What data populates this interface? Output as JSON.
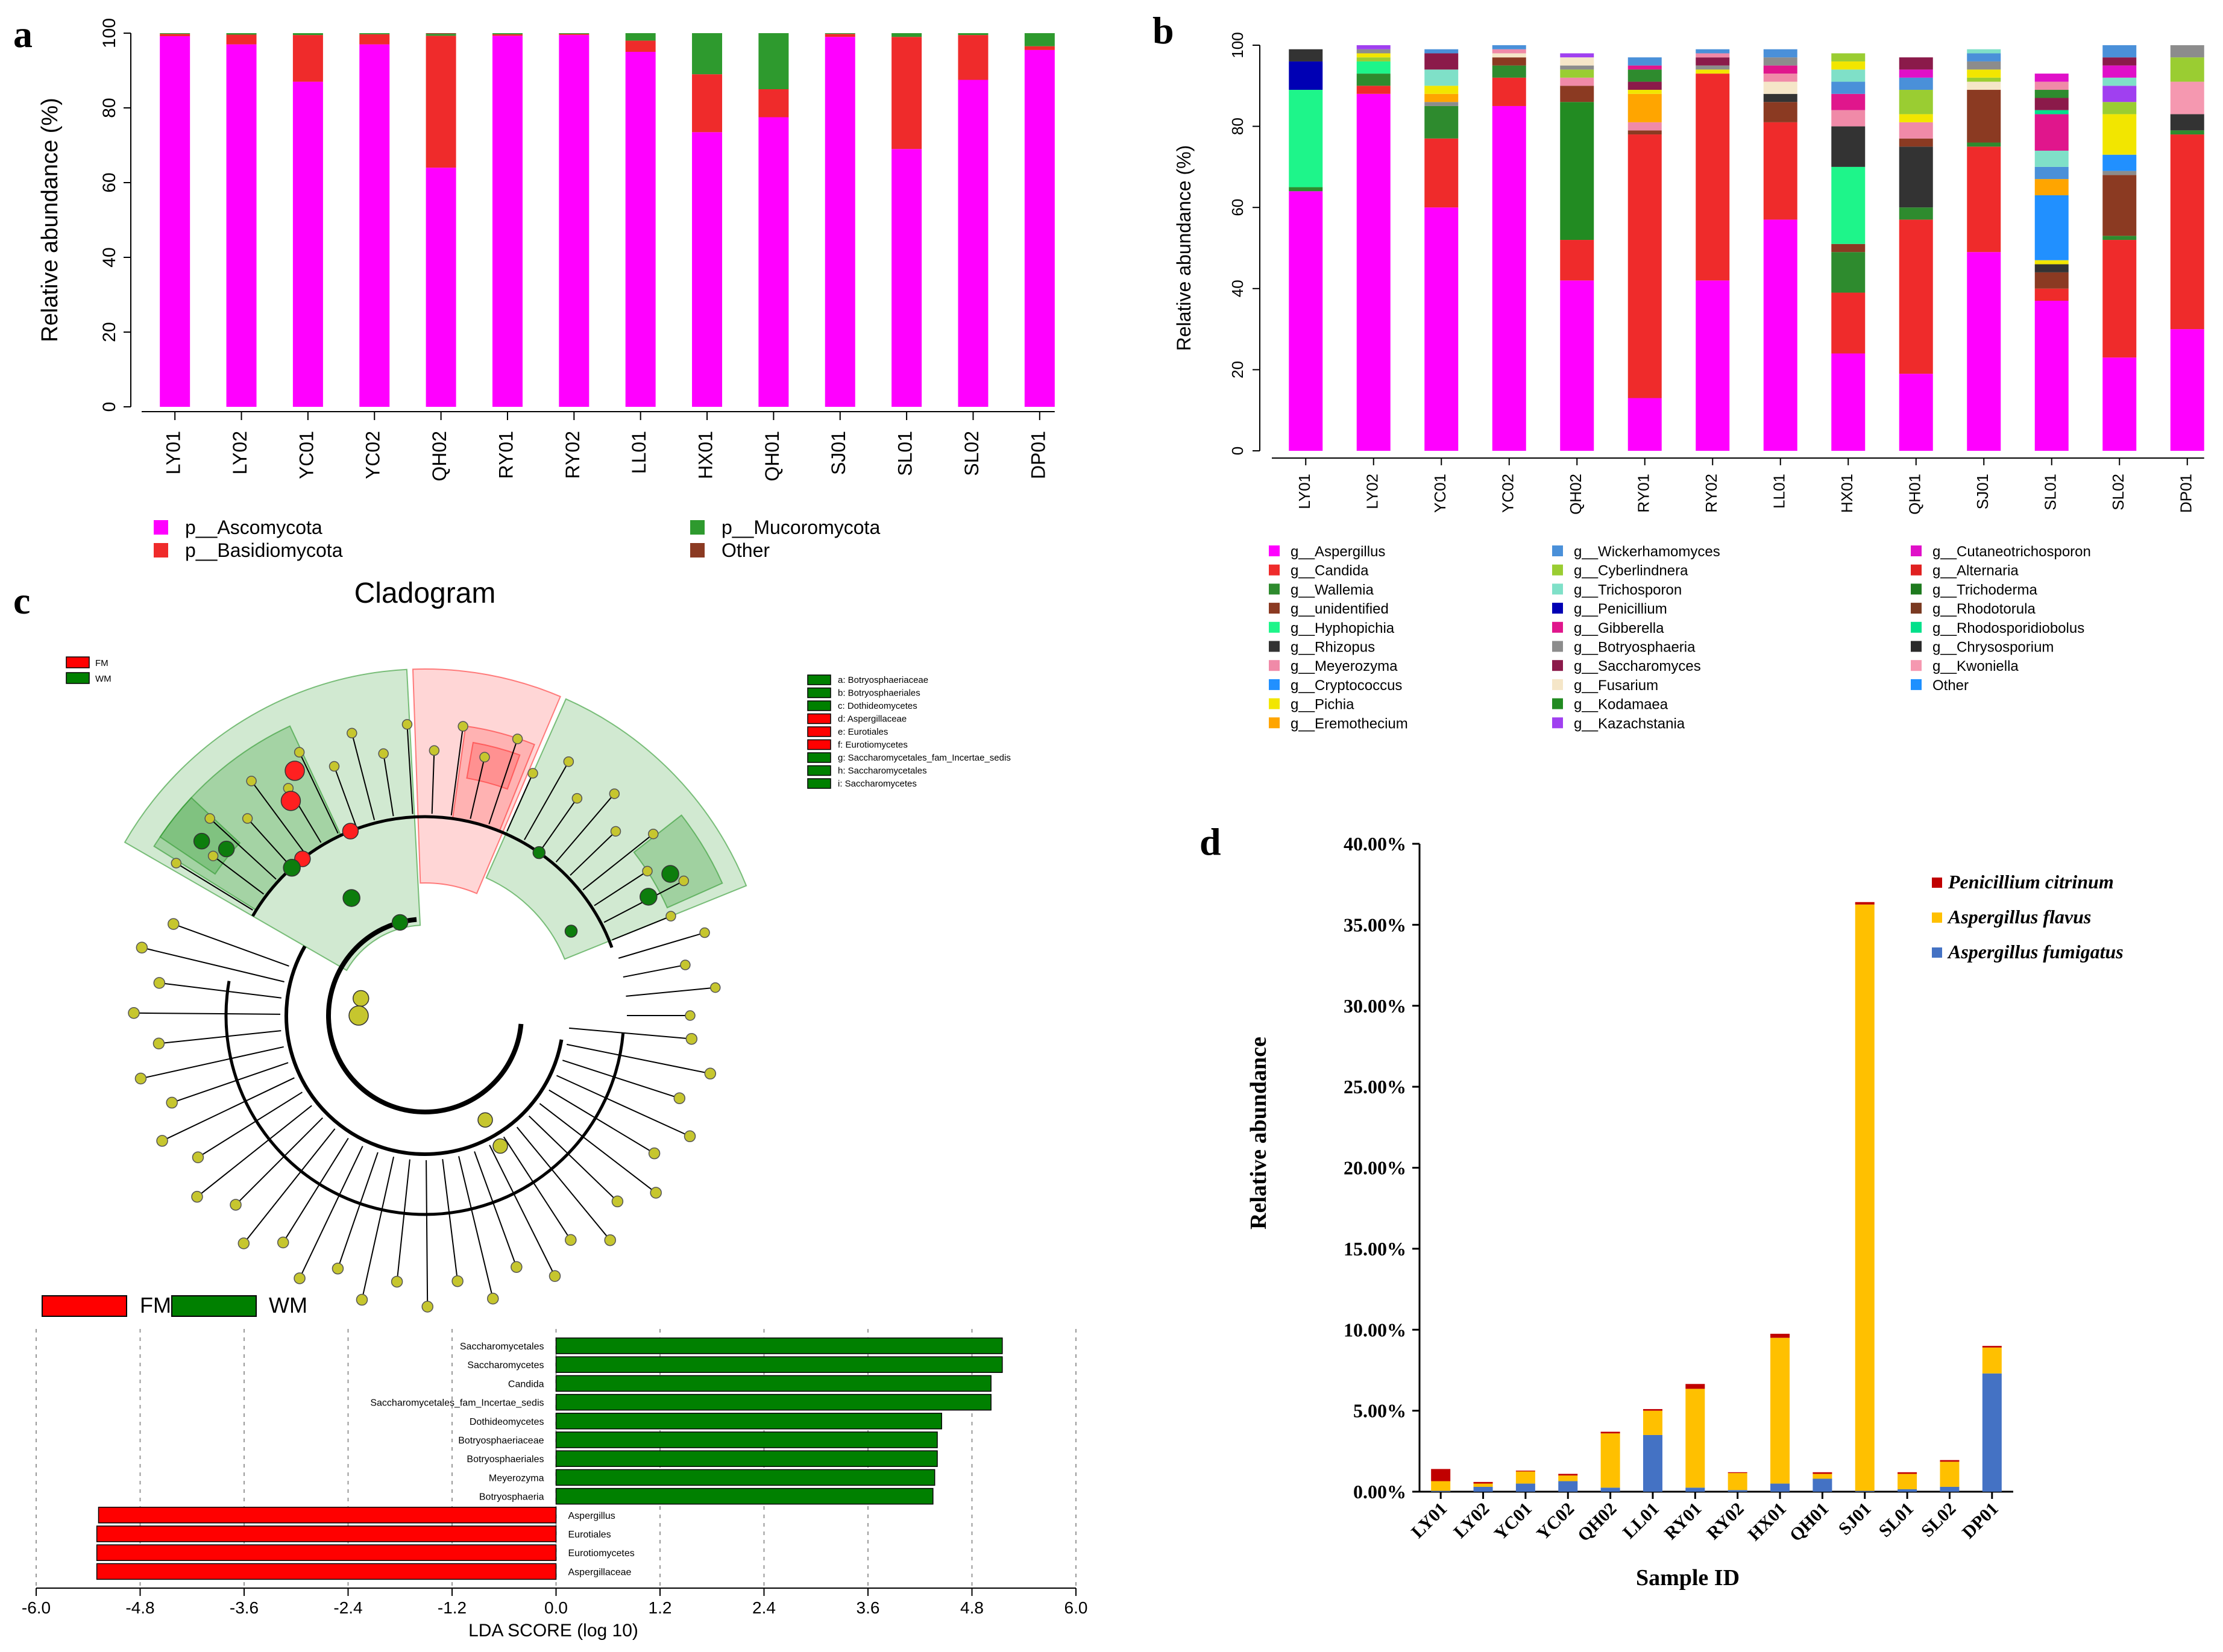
{
  "panels": {
    "a": "a",
    "b": "b",
    "c": "c",
    "d": "d"
  },
  "colors": {
    "magenta": "#ff00ff",
    "red": "#ef2b2b",
    "green": "#2e9a2e",
    "brown": "#8b3a22",
    "dgreen": "#0d7d0d",
    "yellow_node": "#c6c62e",
    "fm": "#ff0000",
    "wm": "#008000"
  },
  "chart_data": [
    {
      "id": "a",
      "type": "bar",
      "stacked": true,
      "title": "",
      "ylabel": "Relative abundance (%)",
      "ylim": [
        0,
        100
      ],
      "yticks": [
        0,
        20,
        40,
        60,
        80,
        100
      ],
      "categories": [
        "LY01",
        "LY02",
        "YC01",
        "YC02",
        "QH02",
        "RY01",
        "RY02",
        "LL01",
        "HX01",
        "QH01",
        "SJ01",
        "SL01",
        "SL02",
        "DP01"
      ],
      "series": [
        {
          "name": "p__Ascomycota",
          "color": "#ff00ff",
          "values": [
            99.2,
            97,
            87,
            97,
            64,
            99.3,
            99.5,
            95,
            73.5,
            77.5,
            99,
            69,
            87.5,
            95.5
          ]
        },
        {
          "name": "p__Basidiomycota",
          "color": "#ef2b2b",
          "values": [
            0.6,
            2.6,
            12.5,
            2.7,
            35.3,
            0.4,
            0.3,
            3,
            15.5,
            7.5,
            0.8,
            30,
            12,
            1
          ]
        },
        {
          "name": "p__Mucoromycota",
          "color": "#2e9a2e",
          "values": [
            0.2,
            0.4,
            0.5,
            0.3,
            0.5,
            0.3,
            0.2,
            2,
            11,
            15,
            0.2,
            1,
            0.5,
            3.5
          ]
        },
        {
          "name": "Other",
          "color": "#8b3a22",
          "values": [
            0,
            0,
            0,
            0,
            0.2,
            0,
            0,
            0,
            0,
            0,
            0,
            0,
            0,
            0
          ]
        }
      ]
    },
    {
      "id": "b",
      "type": "bar",
      "stacked": true,
      "title": "",
      "ylabel": "Relative abundance (%)",
      "ylim": [
        0,
        100
      ],
      "yticks": [
        0,
        20,
        40,
        60,
        80,
        100
      ],
      "categories": [
        "LY01",
        "LY02",
        "YC01",
        "YC02",
        "QH02",
        "RY01",
        "RY02",
        "LL01",
        "HX01",
        "QH01",
        "SJ01",
        "SL01",
        "SL02",
        "DP01"
      ],
      "legend": [
        {
          "name": "g__Aspergillus",
          "color": "#ff00ff"
        },
        {
          "name": "g__Candida",
          "color": "#ef2b2b"
        },
        {
          "name": "g__Wallemia",
          "color": "#2e8b2e"
        },
        {
          "name": "g__unidentified",
          "color": "#8b3a22"
        },
        {
          "name": "g__Hyphopichia",
          "color": "#1ef58a"
        },
        {
          "name": "g__Rhizopus",
          "color": "#333333"
        },
        {
          "name": "g__Meyerozyma",
          "color": "#f08aa8"
        },
        {
          "name": "g__Cryptococcus",
          "color": "#2190ff"
        },
        {
          "name": "g__Pichia",
          "color": "#f2e600"
        },
        {
          "name": "g__Eremothecium",
          "color": "#ffa500"
        },
        {
          "name": "g__Wickerhamomyces",
          "color": "#4a90d9"
        },
        {
          "name": "g__Cyberlindnera",
          "color": "#9acd32"
        },
        {
          "name": "g__Trichosporon",
          "color": "#7fe0c8"
        },
        {
          "name": "g__Penicillium",
          "color": "#0000b4"
        },
        {
          "name": "g__Gibberella",
          "color": "#e0168c"
        },
        {
          "name": "g__Botryosphaeria",
          "color": "#8c8c8c"
        },
        {
          "name": "g__Saccharomyces",
          "color": "#8b1a4a"
        },
        {
          "name": "g__Fusarium",
          "color": "#f5e6c8"
        },
        {
          "name": "g__Kodamaea",
          "color": "#228b22"
        },
        {
          "name": "g__Kazachstania",
          "color": "#a040f0"
        },
        {
          "name": "g__Cutaneotrichosporon",
          "color": "#e010c8"
        },
        {
          "name": "g__Alternaria",
          "color": "#e02020"
        },
        {
          "name": "g__Trichoderma",
          "color": "#1e7a1e"
        },
        {
          "name": "g__Rhodotorula",
          "color": "#7a3a22"
        },
        {
          "name": "g__Rhodosporidiobolus",
          "color": "#00e08a"
        },
        {
          "name": "g__Chrysosporium",
          "color": "#2a2a2a"
        },
        {
          "name": "g__Kwoniella",
          "color": "#f598b0"
        },
        {
          "name": "Other",
          "color": "#1e90ff"
        }
      ],
      "stacks": [
        [
          [
            "#ff00ff",
            64
          ],
          [
            "#2e8b2e",
            1
          ],
          [
            "#1ef58a",
            24
          ],
          [
            "#0000b4",
            7
          ],
          [
            "#333333",
            3
          ]
        ],
        [
          [
            "#ff00ff",
            88
          ],
          [
            "#ef2b2b",
            2
          ],
          [
            "#2e8b2e",
            3
          ],
          [
            "#1ef58a",
            3
          ],
          [
            "#9acd32",
            1
          ],
          [
            "#f2e600",
            1
          ],
          [
            "#8c8c8c",
            1
          ],
          [
            "#a040f0",
            1
          ]
        ],
        [
          [
            "#ff00ff",
            60
          ],
          [
            "#ef2b2b",
            17
          ],
          [
            "#2e8b2e",
            8
          ],
          [
            "#8c8c8c",
            1
          ],
          [
            "#ffa500",
            2
          ],
          [
            "#f2e600",
            2
          ],
          [
            "#7fe0c8",
            4
          ],
          [
            "#8b1a4a",
            4
          ],
          [
            "#4a90d9",
            1
          ]
        ],
        [
          [
            "#ff00ff",
            85
          ],
          [
            "#ef2b2b",
            7
          ],
          [
            "#2e8b2e",
            3
          ],
          [
            "#8b3a22",
            2
          ],
          [
            "#f5e6c8",
            1
          ],
          [
            "#f08aa8",
            1
          ],
          [
            "#4a90d9",
            1
          ]
        ],
        [
          [
            "#ff00ff",
            42
          ],
          [
            "#ef2b2b",
            10
          ],
          [
            "#228b22",
            34
          ],
          [
            "#8b3a22",
            4
          ],
          [
            "#f08aa8",
            2
          ],
          [
            "#9acd32",
            2
          ],
          [
            "#8c8c8c",
            1
          ],
          [
            "#f5e6c8",
            2
          ],
          [
            "#a040f0",
            1
          ]
        ],
        [
          [
            "#ff00ff",
            13
          ],
          [
            "#ef2b2b",
            65
          ],
          [
            "#8b3a22",
            1
          ],
          [
            "#f08aa8",
            2
          ],
          [
            "#ffa500",
            7
          ],
          [
            "#f2e600",
            1
          ],
          [
            "#8b1a4a",
            2
          ],
          [
            "#2e8b2e",
            3
          ],
          [
            "#e0168c",
            1
          ],
          [
            "#4a90d9",
            2
          ]
        ],
        [
          [
            "#ff00ff",
            42
          ],
          [
            "#ef2b2b",
            51
          ],
          [
            "#f2e600",
            1
          ],
          [
            "#8c8c8c",
            1
          ],
          [
            "#8b1a4a",
            2
          ],
          [
            "#f08aa8",
            1
          ],
          [
            "#4a90d9",
            1
          ]
        ],
        [
          [
            "#ff00ff",
            57
          ],
          [
            "#ef2b2b",
            24
          ],
          [
            "#8b3a22",
            5
          ],
          [
            "#333333",
            2
          ],
          [
            "#f5e6c8",
            3
          ],
          [
            "#f08aa8",
            2
          ],
          [
            "#e0168c",
            2
          ],
          [
            "#8c8c8c",
            2
          ],
          [
            "#4a90d9",
            2
          ]
        ],
        [
          [
            "#ff00ff",
            24
          ],
          [
            "#ef2b2b",
            15
          ],
          [
            "#2e8b2e",
            10
          ],
          [
            "#8b3a22",
            2
          ],
          [
            "#1ef58a",
            19
          ],
          [
            "#333333",
            10
          ],
          [
            "#f08aa8",
            4
          ],
          [
            "#e0168c",
            4
          ],
          [
            "#4a90d9",
            3
          ],
          [
            "#7fe0c8",
            3
          ],
          [
            "#f2e600",
            2
          ],
          [
            "#9acd32",
            2
          ]
        ],
        [
          [
            "#ff00ff",
            19
          ],
          [
            "#ef2b2b",
            38
          ],
          [
            "#2e8b2e",
            3
          ],
          [
            "#333333",
            15
          ],
          [
            "#8b3a22",
            2
          ],
          [
            "#f08aa8",
            4
          ],
          [
            "#f2e600",
            2
          ],
          [
            "#9acd32",
            6
          ],
          [
            "#4a90d9",
            3
          ],
          [
            "#e010c8",
            2
          ],
          [
            "#8b1a4a",
            3
          ]
        ],
        [
          [
            "#ff00ff",
            49
          ],
          [
            "#ef2b2b",
            26
          ],
          [
            "#2e8b2e",
            1
          ],
          [
            "#8b3a22",
            13
          ],
          [
            "#f5e6c8",
            2
          ],
          [
            "#9acd32",
            1
          ],
          [
            "#f2e600",
            2
          ],
          [
            "#8c8c8c",
            2
          ],
          [
            "#4a90d9",
            2
          ],
          [
            "#7fe0c8",
            1
          ]
        ],
        [
          [
            "#ff00ff",
            37
          ],
          [
            "#ef2b2b",
            3
          ],
          [
            "#8b3a22",
            4
          ],
          [
            "#333333",
            2
          ],
          [
            "#f2e600",
            1
          ],
          [
            "#2190ff",
            16
          ],
          [
            "#ffa500",
            4
          ],
          [
            "#4a90d9",
            3
          ],
          [
            "#7fe0c8",
            4
          ],
          [
            "#e0168c",
            9
          ],
          [
            "#00e08a",
            1
          ],
          [
            "#8b1a4a",
            3
          ],
          [
            "#2e8b2e",
            2
          ],
          [
            "#f08aa8",
            2
          ],
          [
            "#e010c8",
            2
          ]
        ],
        [
          [
            "#ff00ff",
            23
          ],
          [
            "#ef2b2b",
            29
          ],
          [
            "#2e8b2e",
            1
          ],
          [
            "#8b3a22",
            15
          ],
          [
            "#8c8c8c",
            1
          ],
          [
            "#2190ff",
            4
          ],
          [
            "#f2e600",
            10
          ],
          [
            "#9acd32",
            3
          ],
          [
            "#a040f0",
            4
          ],
          [
            "#7fe0c8",
            2
          ],
          [
            "#e010c8",
            3
          ],
          [
            "#8b1a4a",
            2
          ],
          [
            "#4a90d9",
            3
          ]
        ],
        [
          [
            "#ff00ff",
            30
          ],
          [
            "#ef2b2b",
            48
          ],
          [
            "#2e8b2e",
            1
          ],
          [
            "#333333",
            4
          ],
          [
            "#f598b0",
            8
          ],
          [
            "#9acd32",
            6
          ],
          [
            "#8c8c8c",
            3
          ]
        ]
      ]
    },
    {
      "id": "c",
      "type": "bar",
      "orientation": "horizontal",
      "title": "Cladogram",
      "xlabel": "LDA SCORE (log 10)",
      "xlim": [
        -6.0,
        6.0
      ],
      "xticks": [
        "-6.0",
        "-4.8",
        "-3.6",
        "-2.4",
        "-1.2",
        "0.0",
        "1.2",
        "2.4",
        "3.6",
        "4.8",
        "6.0"
      ],
      "legend": [
        {
          "name": "FM",
          "color": "#ff0000"
        },
        {
          "name": "WM",
          "color": "#008000"
        }
      ],
      "clade_legend": [
        {
          "name": "a: Botryosphaeriaceae",
          "color": "#008000"
        },
        {
          "name": "b: Botryosphaeriales",
          "color": "#008000"
        },
        {
          "name": "c: Dothideomycetes",
          "color": "#008000"
        },
        {
          "name": "d: Aspergillaceae",
          "color": "#ff0000"
        },
        {
          "name": "e: Eurotiales",
          "color": "#ff0000"
        },
        {
          "name": "f: Eurotiomycetes",
          "color": "#ff0000"
        },
        {
          "name": "g: Saccharomycetales_fam_Incertae_sedis",
          "color": "#008000"
        },
        {
          "name": "h: Saccharomycetales",
          "color": "#008000"
        },
        {
          "name": "i: Saccharomycetes",
          "color": "#008000"
        }
      ],
      "lda_bars": [
        {
          "label": "Saccharomycetales",
          "value": 5.15,
          "group": "WM"
        },
        {
          "label": "Saccharomycetes",
          "value": 5.15,
          "group": "WM"
        },
        {
          "label": "Candida",
          "value": 5.02,
          "group": "WM"
        },
        {
          "label": "Saccharomycetales_fam_Incertae_sedis",
          "value": 5.02,
          "group": "WM"
        },
        {
          "label": "Dothideomycetes",
          "value": 4.45,
          "group": "WM"
        },
        {
          "label": "Botryosphaeriaceae",
          "value": 4.4,
          "group": "WM"
        },
        {
          "label": "Botryosphaeriales",
          "value": 4.4,
          "group": "WM"
        },
        {
          "label": "Meyerozyma",
          "value": 4.37,
          "group": "WM"
        },
        {
          "label": "Botryosphaeria",
          "value": 4.35,
          "group": "WM"
        },
        {
          "label": "Aspergillus",
          "value": -5.28,
          "group": "FM"
        },
        {
          "label": "Eurotiales",
          "value": -5.3,
          "group": "FM"
        },
        {
          "label": "Eurotiomycetes",
          "value": -5.3,
          "group": "FM"
        },
        {
          "label": "Aspergillaceae",
          "value": -5.3,
          "group": "FM"
        }
      ]
    },
    {
      "id": "d",
      "type": "bar",
      "stacked": true,
      "xlabel": "Sample ID",
      "ylabel": "Relative abundance",
      "ylim": [
        0,
        40
      ],
      "yticks": [
        "0.00%",
        "5.00%",
        "10.00%",
        "15.00%",
        "20.00%",
        "25.00%",
        "30.00%",
        "35.00%",
        "40.00%"
      ],
      "categories": [
        "LY01",
        "LY02",
        "YC01",
        "YC02",
        "QH02",
        "LL01",
        "RY01",
        "RY02",
        "HX01",
        "QH01",
        "SJ01",
        "SL01",
        "SL02",
        "DP01"
      ],
      "series": [
        {
          "name": "Aspergillus fumigatus",
          "color": "#4472c4",
          "values": [
            0.05,
            0.3,
            0.5,
            0.65,
            0.25,
            3.5,
            0.25,
            0.1,
            0.5,
            0.8,
            0.05,
            0.15,
            0.3,
            7.3
          ]
        },
        {
          "name": "Aspergillus flavus",
          "color": "#ffc000",
          "values": [
            0.6,
            0.2,
            0.75,
            0.35,
            3.35,
            1.5,
            6.1,
            1.05,
            9.0,
            0.3,
            36.2,
            0.95,
            1.55,
            1.6
          ]
        },
        {
          "name": "Penicillium citrinum",
          "color": "#c00000",
          "values": [
            0.75,
            0.1,
            0.05,
            0.1,
            0.1,
            0.1,
            0.3,
            0.05,
            0.25,
            0.1,
            0.15,
            0.1,
            0.1,
            0.1
          ]
        }
      ]
    }
  ]
}
